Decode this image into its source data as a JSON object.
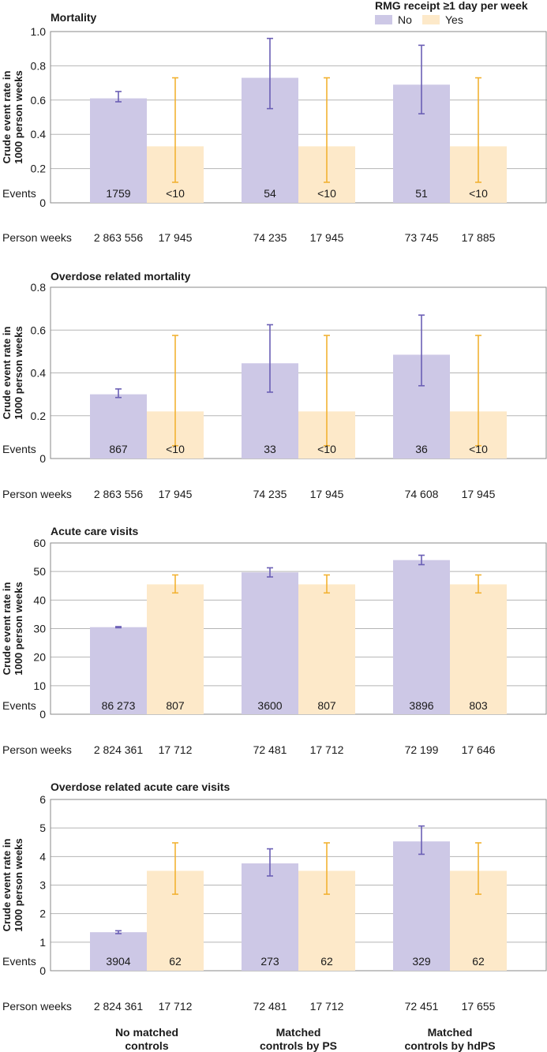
{
  "legend": {
    "title": "RMG receipt ≥1 day per week",
    "items": [
      {
        "label": "No",
        "color": "#cdc8e6",
        "err_color": "#6b5fb5"
      },
      {
        "label": "Yes",
        "color": "#fde9c9",
        "err_color": "#f2b233"
      }
    ]
  },
  "group_labels": [
    [
      "No matched",
      "controls"
    ],
    [
      "Matched",
      "controls by PS"
    ],
    [
      "Matched",
      "controls by hdPS"
    ]
  ],
  "row_labels": {
    "events": "Events",
    "person_weeks": "Person weeks"
  },
  "ylabel": [
    "Crude event rate in",
    "1000 person weeks"
  ],
  "chart_data": [
    {
      "type": "bar",
      "title": "Mortality",
      "ylabel": "Crude event rate in 1000 person weeks",
      "ylim": [
        0,
        1.0
      ],
      "yticks": [
        "0",
        "0.2",
        "0.4",
        "0.6",
        "0.8",
        "1.0"
      ],
      "categories": [
        "No matched controls",
        "Matched controls by PS",
        "Matched controls by hdPS"
      ],
      "series": [
        {
          "name": "No",
          "values": [
            0.61,
            0.73,
            0.69
          ],
          "ci_low": [
            0.59,
            0.55,
            0.52
          ],
          "ci_high": [
            0.65,
            0.96,
            0.92
          ]
        },
        {
          "name": "Yes",
          "values": [
            0.33,
            0.33,
            0.33
          ],
          "ci_low": [
            0.12,
            0.12,
            0.12
          ],
          "ci_high": [
            0.73,
            0.73,
            0.73
          ]
        }
      ],
      "events": [
        "1759",
        "<10",
        "54",
        "<10",
        "51",
        "<10"
      ],
      "person_weeks": [
        "2 863 556",
        "17 945",
        "74 235",
        "17 945",
        "73 745",
        "17 885"
      ]
    },
    {
      "type": "bar",
      "title": "Overdose related mortality",
      "ylabel": "Crude event rate in 1000 person weeks",
      "ylim": [
        0,
        0.8
      ],
      "yticks": [
        "0",
        "0.2",
        "0.4",
        "0.6",
        "0.8"
      ],
      "categories": [
        "No matched controls",
        "Matched controls by PS",
        "Matched controls by hdPS"
      ],
      "series": [
        {
          "name": "No",
          "values": [
            0.3,
            0.445,
            0.485
          ],
          "ci_low": [
            0.285,
            0.31,
            0.34
          ],
          "ci_high": [
            0.325,
            0.625,
            0.67
          ]
        },
        {
          "name": "Yes",
          "values": [
            0.22,
            0.22,
            0.22
          ],
          "ci_low": [
            0.06,
            0.06,
            0.06
          ],
          "ci_high": [
            0.575,
            0.575,
            0.575
          ]
        }
      ],
      "events": [
        "867",
        "<10",
        "33",
        "<10",
        "36",
        "<10"
      ],
      "person_weeks": [
        "2 863 556",
        "17 945",
        "74 235",
        "17 945",
        "74 608",
        "17 945"
      ]
    },
    {
      "type": "bar",
      "title": "Acute care visits",
      "ylabel": "Crude event rate in 1000 person weeks",
      "ylim": [
        0,
        60
      ],
      "yticks": [
        "0",
        "10",
        "20",
        "30",
        "40",
        "50",
        "60"
      ],
      "categories": [
        "No matched controls",
        "Matched controls by PS",
        "Matched controls by hdPS"
      ],
      "series": [
        {
          "name": "No",
          "values": [
            30.5,
            49.7,
            54.0
          ],
          "ci_low": [
            30.3,
            48.1,
            52.4
          ],
          "ci_high": [
            30.7,
            51.3,
            55.7
          ]
        },
        {
          "name": "Yes",
          "values": [
            45.5,
            45.5,
            45.5
          ],
          "ci_low": [
            42.5,
            42.5,
            42.5
          ],
          "ci_high": [
            48.8,
            48.8,
            48.8
          ]
        }
      ],
      "events": [
        "86 273",
        "807",
        "3600",
        "807",
        "3896",
        "803"
      ],
      "person_weeks": [
        "2 824 361",
        "17 712",
        "72 481",
        "17 712",
        "72 199",
        "17 646"
      ]
    },
    {
      "type": "bar",
      "title": "Overdose related acute care visits",
      "ylabel": "Crude event rate in 1000 person weeks",
      "ylim": [
        0,
        6
      ],
      "yticks": [
        "0",
        "1",
        "2",
        "3",
        "4",
        "5",
        "6"
      ],
      "categories": [
        "No matched controls",
        "Matched controls by PS",
        "Matched controls by hdPS"
      ],
      "series": [
        {
          "name": "No",
          "values": [
            1.35,
            3.76,
            4.53
          ],
          "ci_low": [
            1.3,
            3.32,
            4.08
          ],
          "ci_high": [
            1.4,
            4.27,
            5.07
          ]
        },
        {
          "name": "Yes",
          "values": [
            3.5,
            3.5,
            3.5
          ],
          "ci_low": [
            2.68,
            2.68,
            2.68
          ],
          "ci_high": [
            4.48,
            4.48,
            4.48
          ]
        }
      ],
      "events": [
        "3904",
        "62",
        "273",
        "62",
        "329",
        "62"
      ],
      "person_weeks": [
        "2 824 361",
        "17 712",
        "72 481",
        "17 712",
        "72 451",
        "17 655"
      ]
    }
  ]
}
